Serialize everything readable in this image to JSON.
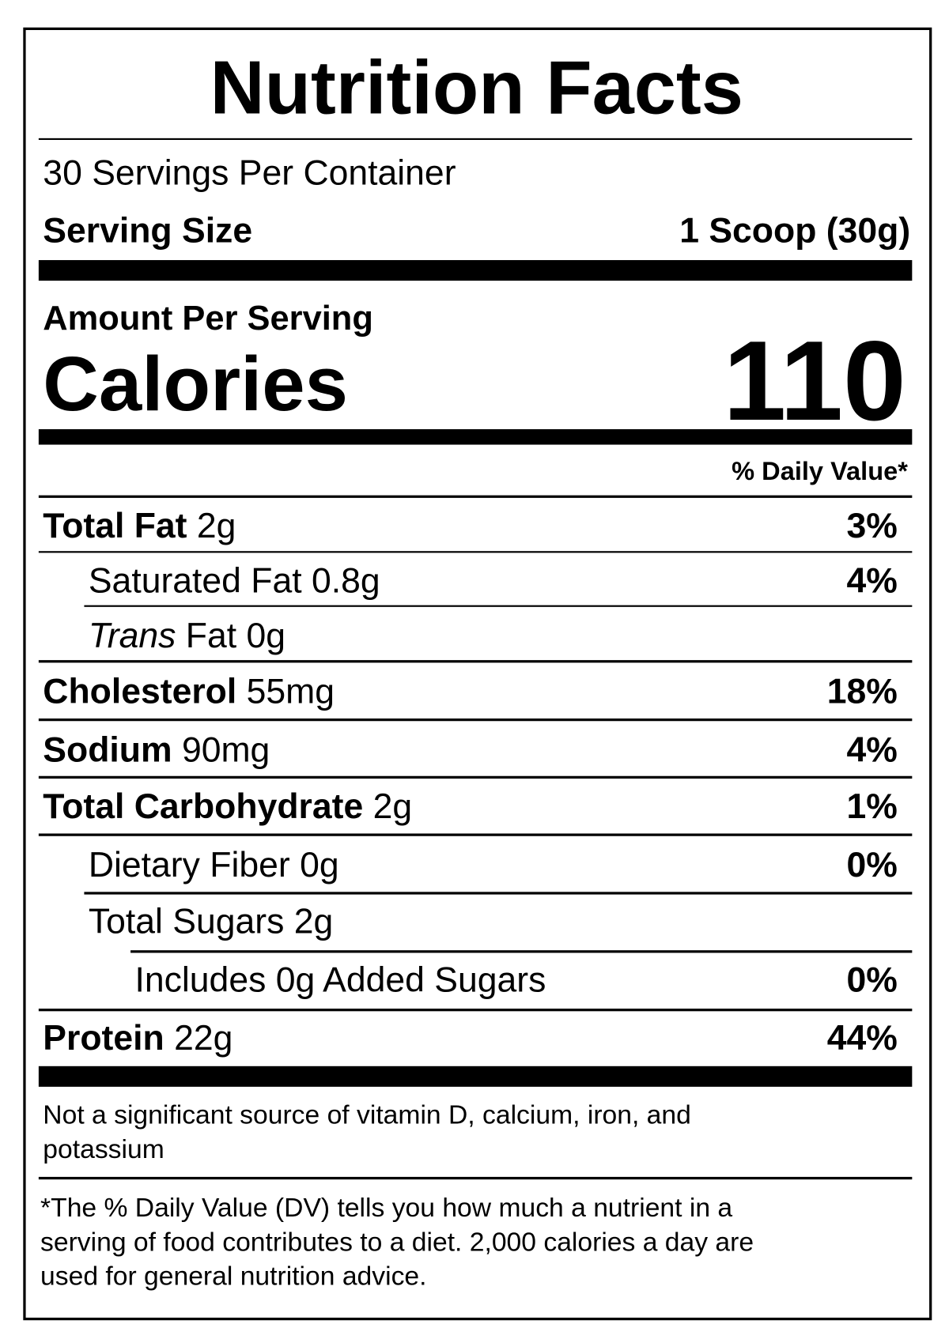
{
  "title": "Nutrition Facts",
  "servings_per_container": "30 Servings Per Container",
  "serving_size": {
    "label": "Serving Size",
    "value": "1 Scoop (30g)"
  },
  "amount_per_serving": "Amount Per Serving",
  "calories": {
    "label": "Calories",
    "value": "110"
  },
  "daily_value_header": "% Daily Value*",
  "nutrients": [
    {
      "label": "Total Fat",
      "amount": "2g",
      "dv": "3%"
    },
    {
      "label": "Saturated Fat 0.8g",
      "dv": "4%"
    },
    {
      "label_italic": "Trans",
      "label": "Fat 0g"
    },
    {
      "label": "Cholesterol",
      "amount": "55mg",
      "dv": "18%"
    },
    {
      "label": "Sodium",
      "amount": "90mg",
      "dv": "4%"
    },
    {
      "label": "Total Carbohydrate",
      "amount": "2g",
      "dv": "1%"
    },
    {
      "label": "Dietary Fiber 0g",
      "dv": "0%"
    },
    {
      "label": "Total Sugars 2g"
    },
    {
      "label": "Includes 0g Added Sugars",
      "dv": "0%"
    },
    {
      "label": "Protein",
      "amount": "22g",
      "dv": "44%"
    }
  ],
  "footnote_vitamins": [
    "Not a significant source of vitamin D, calcium, iron, and",
    "potassium"
  ],
  "footnote_dv": [
    "*The % Daily Value (DV) tells you how much a nutrient in a",
    "serving of food contributes to a diet. 2,000 calories a day are",
    "used for general nutrition advice."
  ]
}
